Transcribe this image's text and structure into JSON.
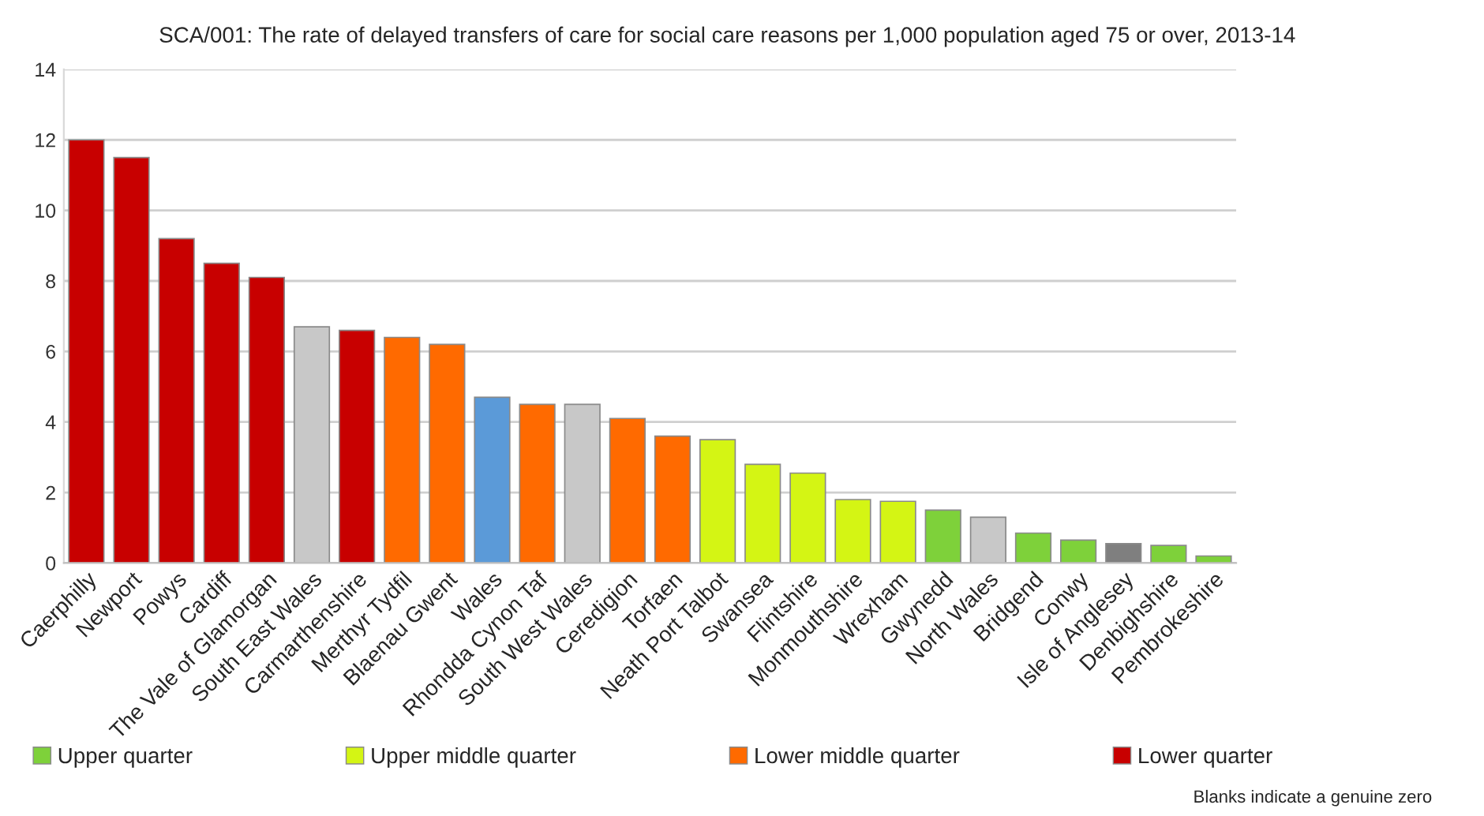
{
  "chart_data": {
    "type": "bar",
    "stacked": true,
    "title": "SCA/001: The rate of delayed transfers of care for social care reasons per 1,000 population aged 75 or over, 2013-14",
    "categories": [
      "Caerphilly",
      "Newport",
      "Powys",
      "Cardiff",
      "The Vale of Glamorgan",
      "South East Wales",
      "Carmarthenshire",
      "Merthyr Tydfil",
      "Blaenau Gwent",
      "Wales",
      "Rhondda Cynon Taf",
      "South West Wales",
      "Ceredigion",
      "Torfaen",
      "Neath Port Talbot",
      "Swansea",
      "Flintshire",
      "Monmouthshire",
      "Wrexham",
      "Gwynedd",
      "North Wales",
      "Bridgend",
      "Conwy",
      "Isle of Anglesey",
      "Denbighshire",
      "Pembrokeshire"
    ],
    "series": [
      {
        "name": "Upper quarter",
        "color": "#7ed13a",
        "values": [
          null,
          null,
          null,
          null,
          null,
          null,
          null,
          null,
          null,
          null,
          null,
          null,
          null,
          null,
          null,
          null,
          null,
          null,
          null,
          1.5,
          null,
          0.85,
          0.65,
          null,
          0.5,
          0.2
        ]
      },
      {
        "name": "Upper middle quarter",
        "color": "#d4f514",
        "values": [
          null,
          null,
          null,
          null,
          null,
          null,
          null,
          null,
          null,
          null,
          null,
          null,
          null,
          null,
          3.5,
          2.8,
          2.55,
          1.8,
          1.75,
          null,
          null,
          null,
          null,
          null,
          null,
          null
        ]
      },
      {
        "name": "Lower middle quarter",
        "color": "#ff6a00",
        "values": [
          null,
          null,
          null,
          null,
          null,
          null,
          null,
          6.4,
          6.2,
          null,
          4.5,
          null,
          4.1,
          3.6,
          null,
          null,
          null,
          null,
          null,
          null,
          null,
          null,
          null,
          null,
          null,
          null
        ]
      },
      {
        "name": "Lower quarter",
        "color": "#c80000",
        "values": [
          12.0,
          11.5,
          9.2,
          8.5,
          8.1,
          null,
          6.6,
          null,
          null,
          null,
          null,
          null,
          null,
          null,
          null,
          null,
          null,
          null,
          null,
          null,
          null,
          null,
          null,
          null,
          null,
          null
        ]
      },
      {
        "color": "#5b9ad8",
        "values": [
          null,
          null,
          null,
          null,
          null,
          null,
          null,
          null,
          null,
          4.7,
          null,
          null,
          null,
          null,
          null,
          null,
          null,
          null,
          null,
          null,
          null,
          null,
          null,
          null,
          null,
          null
        ]
      },
      {
        "color": "#c8c8c8",
        "values": [
          null,
          null,
          null,
          null,
          null,
          6.7,
          null,
          null,
          null,
          null,
          null,
          4.5,
          null,
          null,
          null,
          null,
          null,
          null,
          null,
          null,
          1.3,
          null,
          null,
          null,
          null,
          null
        ]
      },
      {
        "color": "#7f7f7f",
        "values": [
          null,
          null,
          null,
          null,
          null,
          null,
          null,
          null,
          null,
          null,
          null,
          null,
          null,
          null,
          null,
          null,
          null,
          null,
          null,
          null,
          null,
          null,
          null,
          0.55,
          null,
          null
        ]
      }
    ],
    "ylim": [
      0,
      14
    ],
    "yticks": [
      0,
      2,
      4,
      6,
      8,
      10,
      12,
      14
    ],
    "grid": "y",
    "legend": "bottom",
    "annotations": [
      "Blanks indicate a genuine zero"
    ]
  }
}
